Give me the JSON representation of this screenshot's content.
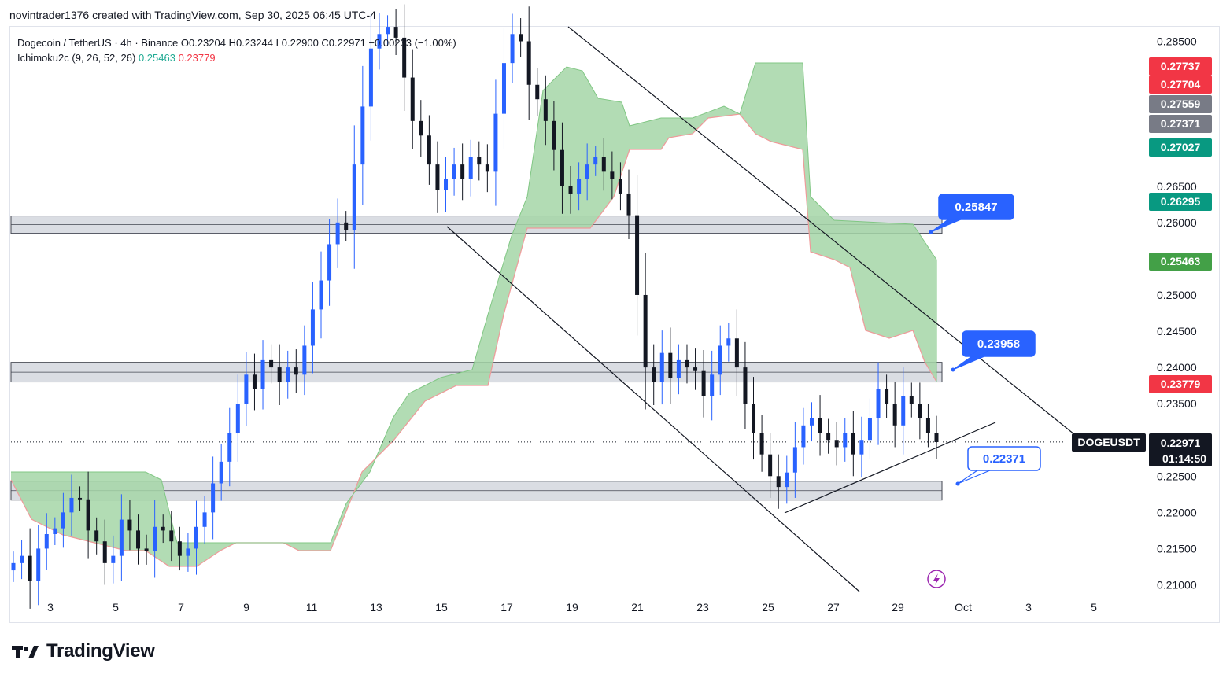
{
  "header": {
    "credit": "novintrader1376 created with TradingView.com, Sep 30, 2025 06:45 UTC-4"
  },
  "legend": {
    "line1": "Dogecoin / TetherUS · 4h · Binance  O0.23204  H0.23244  L0.22900  C0.22971  −0.00233 (−1.00%)",
    "indicator": "Ichimoku2c (9, 26, 52, 26)",
    "ind_val_green": "0.25463",
    "ind_val_red": "0.23779"
  },
  "brand": {
    "name": "TradingView",
    "icon": "tradingview-logo-icon"
  },
  "colors": {
    "up": "#2962ff",
    "down": "#131722",
    "cloud": "#a5d6a7",
    "cloud_edge": "#ef9a9a",
    "zone": "#d1d4dc",
    "callout": "#2962ff"
  },
  "chart_data": {
    "type": "candlestick",
    "symbol": "DOGEUSDT",
    "last_price": "0.22971",
    "countdown": "01:14:50",
    "ylim": [
      0.2085,
      0.2875
    ],
    "y_ticks": [
      "0.28500",
      "0.26500",
      "0.26000",
      "0.25000",
      "0.24500",
      "0.24000",
      "0.23500",
      "0.22500",
      "0.22000",
      "0.21500",
      "0.21000"
    ],
    "x_ticks": [
      "3",
      "5",
      "7",
      "9",
      "11",
      "13",
      "15",
      "17",
      "19",
      "21",
      "23",
      "25",
      "27",
      "29",
      "Oct",
      "3",
      "5"
    ],
    "price_tags": [
      {
        "value": "0.27737",
        "color": "#f23645"
      },
      {
        "value": "0.27704",
        "color": "#f23645"
      },
      {
        "value": "0.27559",
        "color": "#787b86"
      },
      {
        "value": "0.27371",
        "color": "#787b86"
      },
      {
        "value": "0.27027",
        "color": "#089981"
      },
      {
        "value": "0.26295",
        "color": "#089981"
      },
      {
        "value": "0.25463",
        "color": "#43a047"
      },
      {
        "value": "0.23779",
        "color": "#f23645"
      }
    ],
    "callouts": [
      {
        "value": "0.25847",
        "style": "filled"
      },
      {
        "value": "0.23958",
        "style": "filled"
      },
      {
        "value": "0.22371",
        "style": "outline"
      }
    ],
    "zones": [
      [
        0.2585,
        0.2609
      ],
      [
        0.238,
        0.2407
      ],
      [
        0.2217,
        0.2243
      ]
    ],
    "closes": [
      0.213,
      0.214,
      0.2105,
      0.215,
      0.217,
      0.2178,
      0.22,
      0.222,
      0.2218,
      0.2175,
      0.216,
      0.213,
      0.214,
      0.219,
      0.2175,
      0.215,
      0.2147,
      0.218,
      0.2175,
      0.216,
      0.214,
      0.215,
      0.218,
      0.22,
      0.224,
      0.227,
      0.231,
      0.235,
      0.239,
      0.237,
      0.241,
      0.24,
      0.238,
      0.24,
      0.239,
      0.243,
      0.248,
      0.252,
      0.257,
      0.26,
      0.259,
      0.268,
      0.276,
      0.284,
      0.286,
      0.287,
      0.2855,
      0.28,
      0.274,
      0.272,
      0.268,
      0.2645,
      0.266,
      0.268,
      0.266,
      0.269,
      0.268,
      0.267,
      0.275,
      0.282,
      0.286,
      0.285,
      0.279,
      0.277,
      0.274,
      0.27,
      0.265,
      0.264,
      0.266,
      0.268,
      0.269,
      0.267,
      0.266,
      0.264,
      0.261,
      0.25,
      0.24,
      0.238,
      0.242,
      0.2385,
      0.241,
      0.24,
      0.2395,
      0.236,
      0.239,
      0.243,
      0.244,
      0.24,
      0.235,
      0.231,
      0.228,
      0.225,
      0.2235,
      0.2255,
      0.229,
      0.232,
      0.233,
      0.231,
      0.23,
      0.229,
      0.231,
      0.228,
      0.23,
      0.233,
      0.237,
      0.235,
      0.232,
      0.236,
      0.235,
      0.233,
      0.231,
      0.2297
    ]
  }
}
